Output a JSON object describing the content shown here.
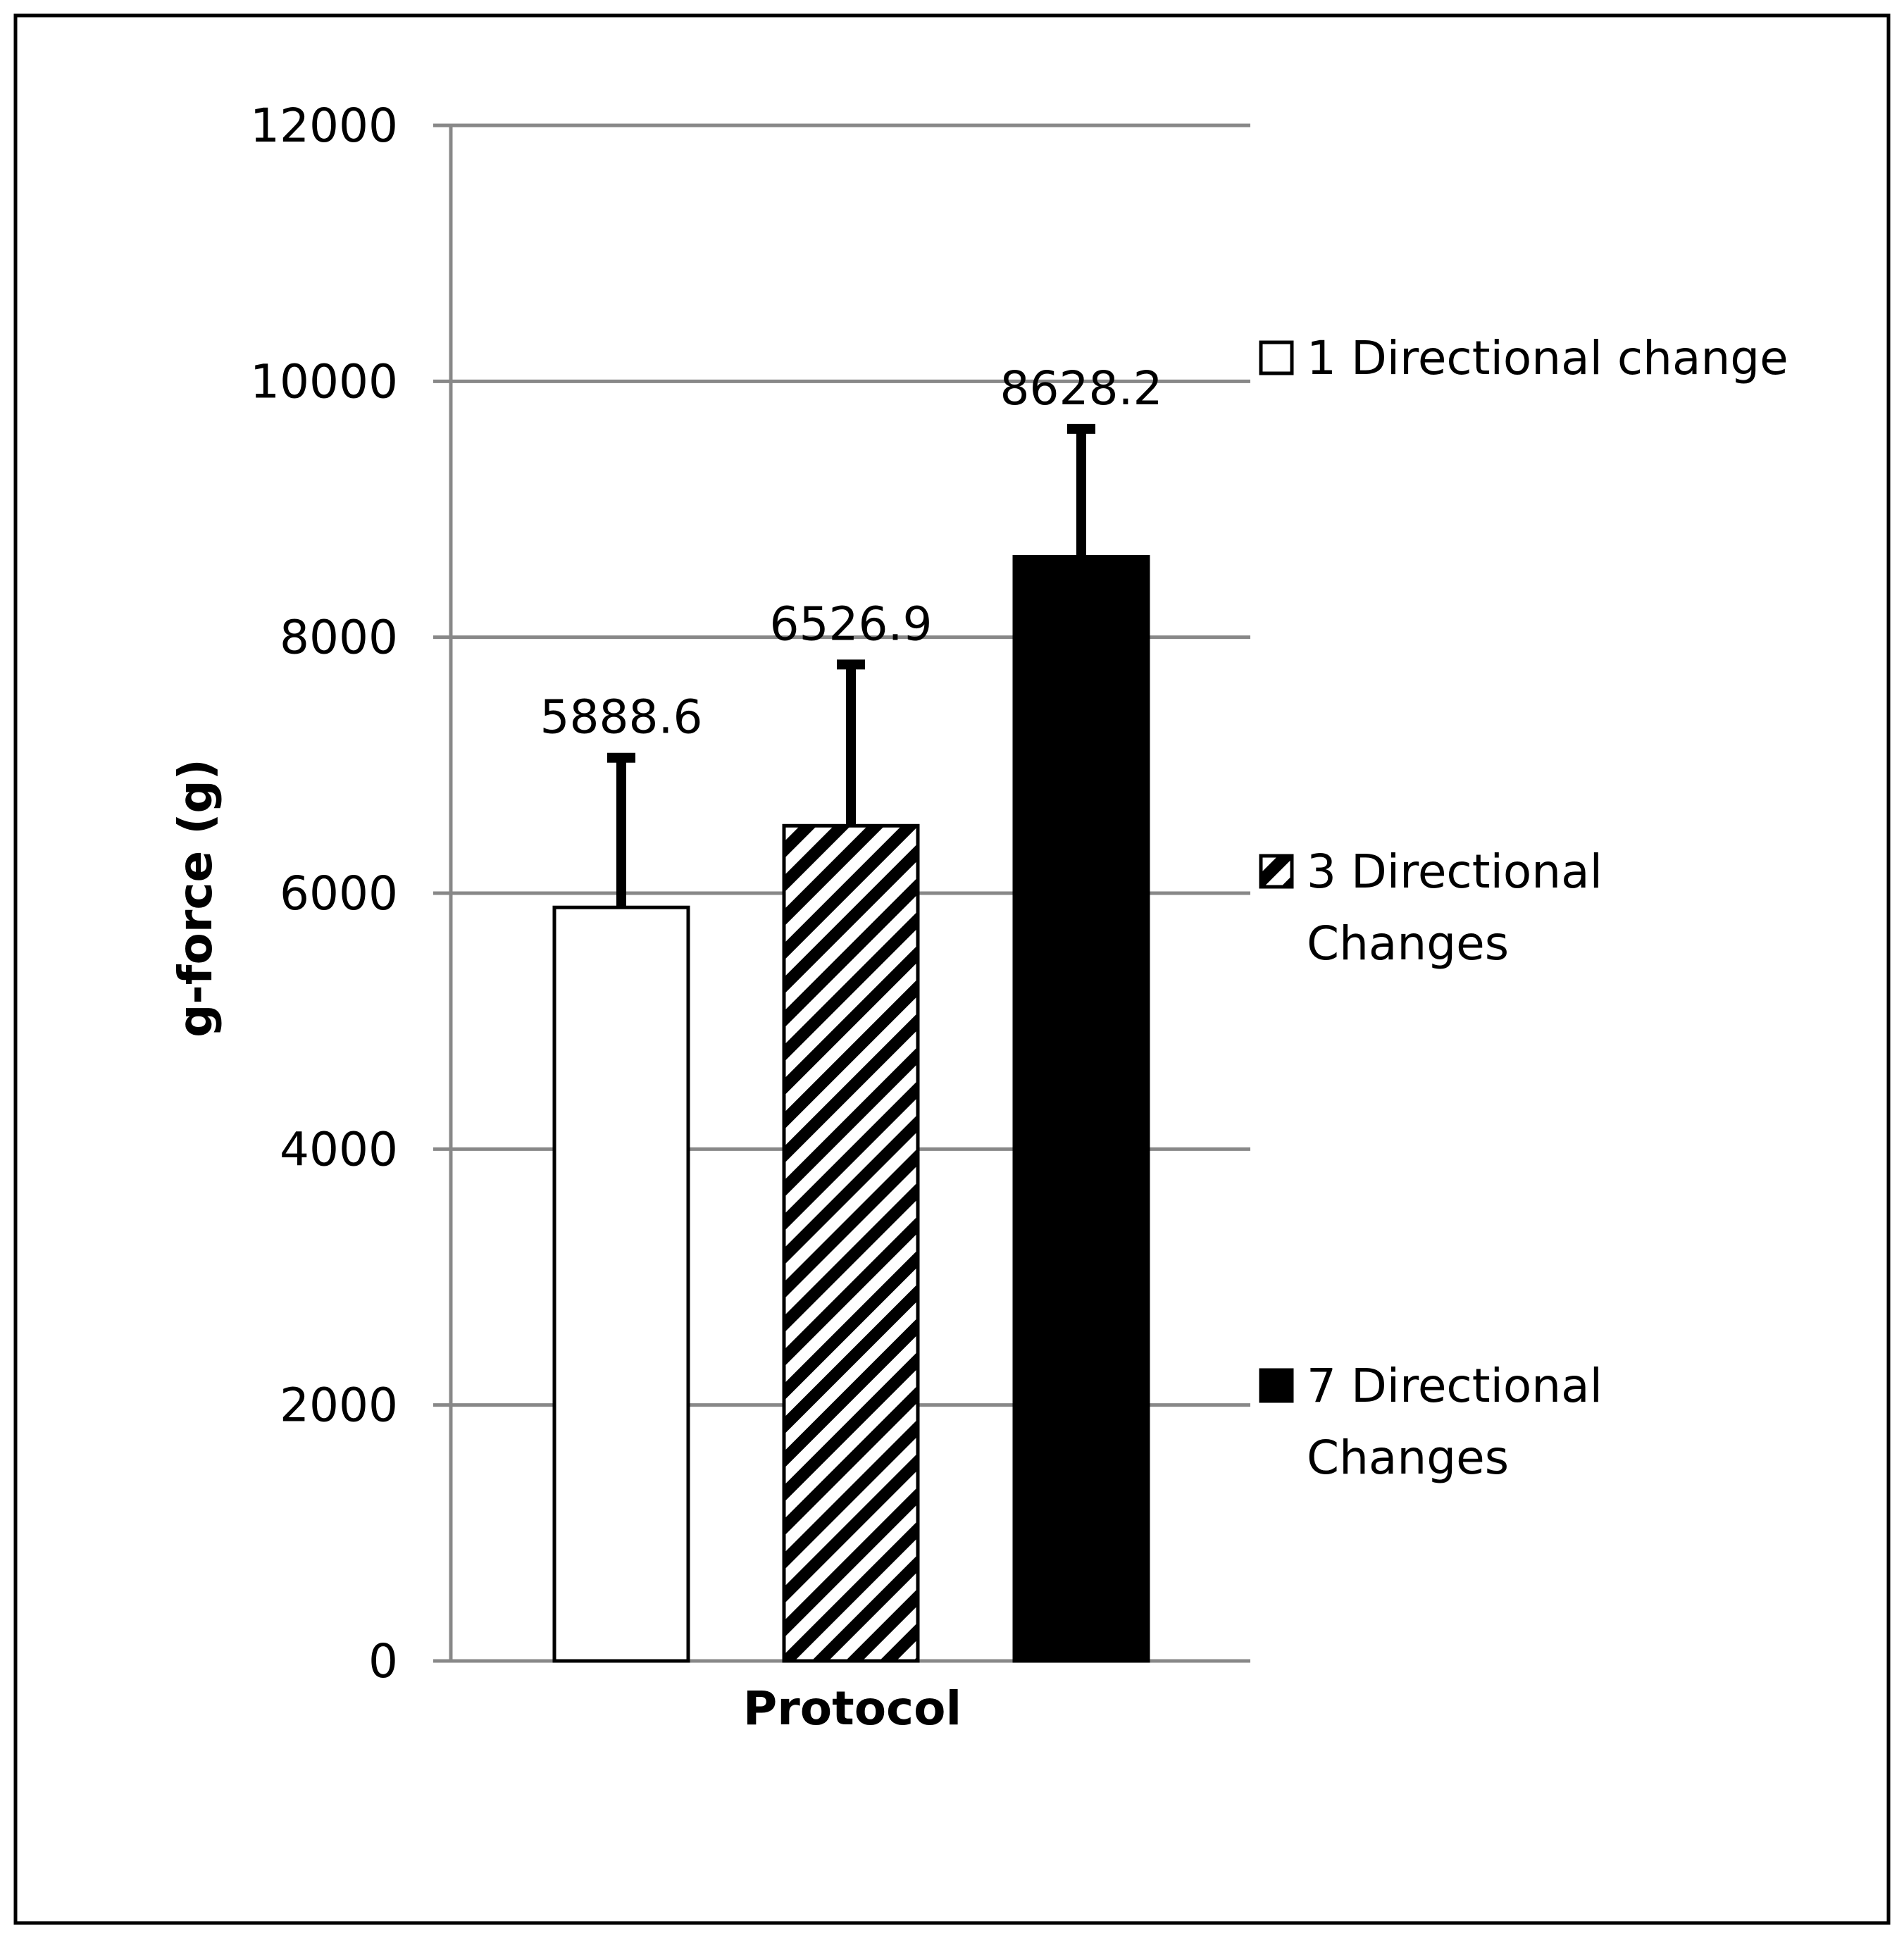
{
  "chart_data": {
    "type": "bar",
    "xlabel": "Protocol",
    "ylabel": "g-force (g)",
    "ylim": [
      0,
      12000
    ],
    "yticks": [
      0,
      2000,
      4000,
      6000,
      8000,
      10000,
      12000
    ],
    "grid": true,
    "legend_position": "right",
    "series": [
      {
        "name": "1 Directional change",
        "value": 5888.6,
        "error": 1170,
        "label": "5888.6",
        "fill": "white"
      },
      {
        "name": "3 Directional Changes",
        "value": 6526.9,
        "error": 1260,
        "label": "6526.9",
        "fill": "hatched"
      },
      {
        "name": "7 Directional Changes",
        "value": 8628.2,
        "error": 1000,
        "label": "8628.2",
        "fill": "black"
      }
    ],
    "legend": [
      {
        "lines": [
          "1 Directional change"
        ],
        "fill": "white"
      },
      {
        "lines": [
          "3 Directional",
          "Changes"
        ],
        "fill": "hatched"
      },
      {
        "lines": [
          "7 Directional",
          "Changes"
        ],
        "fill": "black"
      }
    ],
    "colors": {
      "bar_stroke": "#000000",
      "gridline": "#888888",
      "frame": "#000000",
      "black_fill": "#000000"
    }
  }
}
